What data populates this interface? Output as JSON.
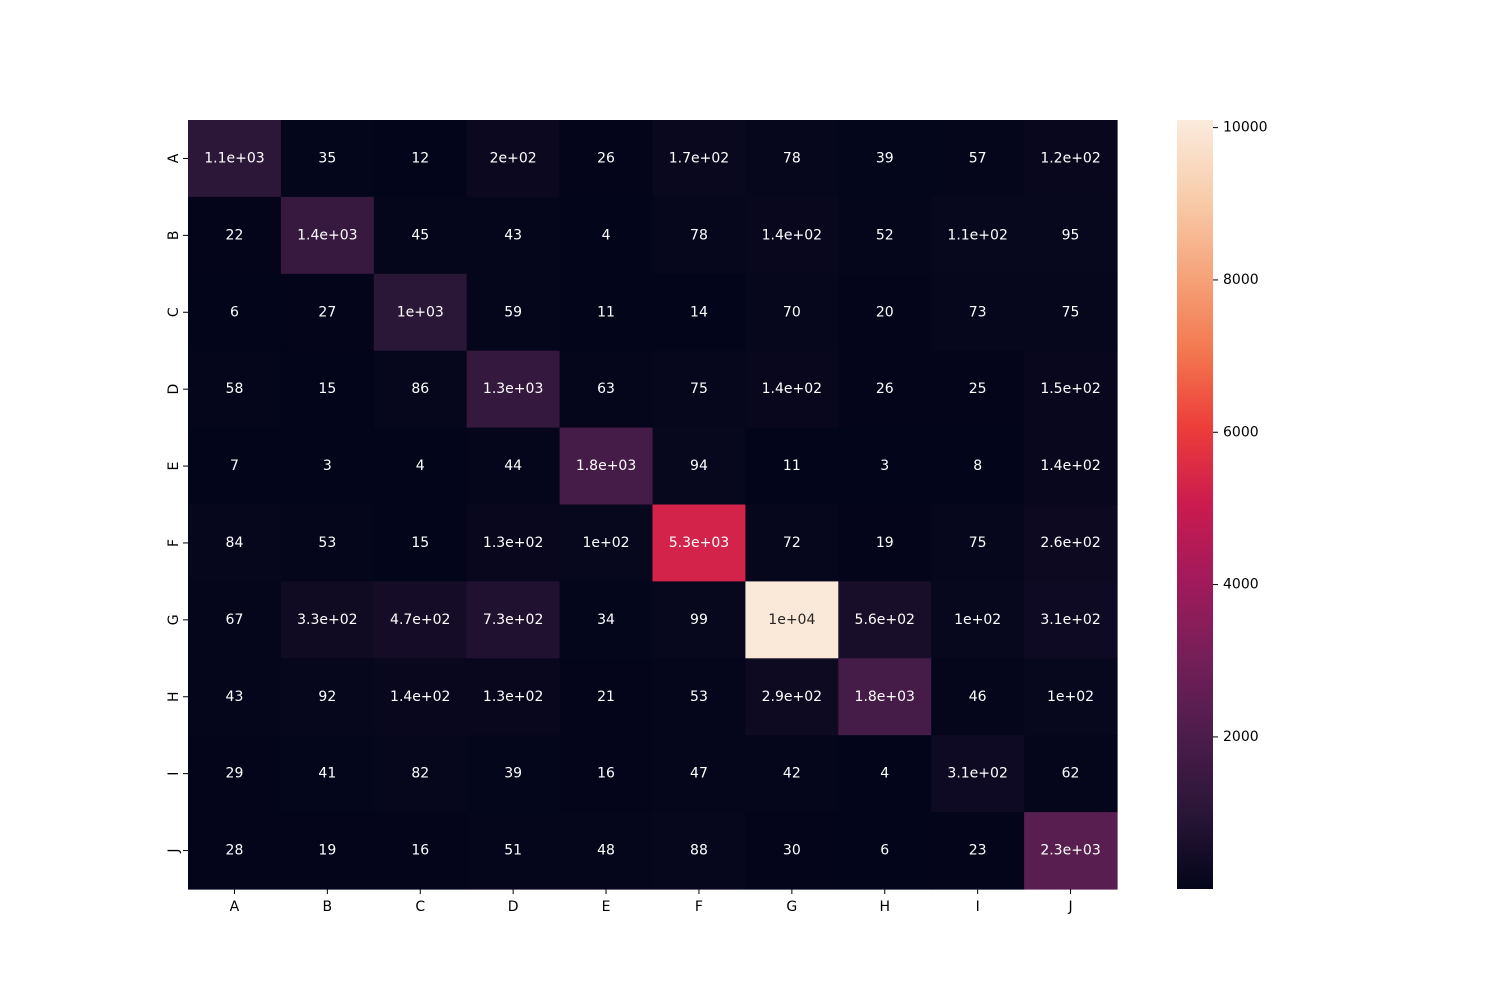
{
  "chart_data": {
    "type": "heatmap",
    "title": "",
    "xlabel": "",
    "ylabel": "",
    "x_categories": [
      "A",
      "B",
      "C",
      "D",
      "E",
      "F",
      "G",
      "H",
      "I",
      "J"
    ],
    "y_categories": [
      "A",
      "B",
      "C",
      "D",
      "E",
      "F",
      "G",
      "H",
      "I",
      "J"
    ],
    "values": [
      [
        1100,
        35,
        12,
        200,
        26,
        170,
        78,
        39,
        57,
        120
      ],
      [
        22,
        1400,
        45,
        43,
        4,
        78,
        140,
        52,
        110,
        95
      ],
      [
        6,
        27,
        1000,
        59,
        11,
        14,
        70,
        20,
        73,
        75
      ],
      [
        58,
        15,
        86,
        1300,
        63,
        75,
        140,
        26,
        25,
        150
      ],
      [
        7,
        3,
        4,
        44,
        1800,
        94,
        11,
        3,
        8,
        140
      ],
      [
        84,
        53,
        15,
        130,
        100,
        5300,
        72,
        19,
        75,
        260
      ],
      [
        67,
        330,
        470,
        730,
        34,
        99,
        10000,
        560,
        100,
        310
      ],
      [
        43,
        92,
        140,
        130,
        21,
        53,
        290,
        1800,
        46,
        100
      ],
      [
        29,
        41,
        82,
        39,
        16,
        47,
        42,
        4,
        310,
        62
      ],
      [
        28,
        19,
        16,
        51,
        48,
        88,
        30,
        6,
        23,
        2300
      ]
    ],
    "annotations": [
      [
        "1.1e+03",
        "35",
        "12",
        "2e+02",
        "26",
        "1.7e+02",
        "78",
        "39",
        "57",
        "1.2e+02"
      ],
      [
        "22",
        "1.4e+03",
        "45",
        "43",
        "4",
        "78",
        "1.4e+02",
        "52",
        "1.1e+02",
        "95"
      ],
      [
        "6",
        "27",
        "1e+03",
        "59",
        "11",
        "14",
        "70",
        "20",
        "73",
        "75"
      ],
      [
        "58",
        "15",
        "86",
        "1.3e+03",
        "63",
        "75",
        "1.4e+02",
        "26",
        "25",
        "1.5e+02"
      ],
      [
        "7",
        "3",
        "4",
        "44",
        "1.8e+03",
        "94",
        "11",
        "3",
        "8",
        "1.4e+02"
      ],
      [
        "84",
        "53",
        "15",
        "1.3e+02",
        "1e+02",
        "5.3e+03",
        "72",
        "19",
        "75",
        "2.6e+02"
      ],
      [
        "67",
        "3.3e+02",
        "4.7e+02",
        "7.3e+02",
        "34",
        "99",
        "1e+04",
        "5.6e+02",
        "1e+02",
        "3.1e+02"
      ],
      [
        "43",
        "92",
        "1.4e+02",
        "1.3e+02",
        "21",
        "53",
        "2.9e+02",
        "1.8e+03",
        "46",
        "1e+02"
      ],
      [
        "29",
        "41",
        "82",
        "39",
        "16",
        "47",
        "42",
        "4",
        "3.1e+02",
        "62"
      ],
      [
        "28",
        "19",
        "16",
        "51",
        "48",
        "88",
        "30",
        "6",
        "23",
        "2.3e+03"
      ]
    ],
    "colorbar": {
      "min": 3,
      "max": 10100,
      "ticks": [
        2000,
        4000,
        6000,
        8000,
        10000
      ],
      "tick_labels": [
        "2000",
        "4000",
        "6000",
        "8000",
        "10000"
      ]
    },
    "colormap": "rocket",
    "colormap_stops": [
      "#03051a",
      "#2a1637",
      "#4c1d4b",
      "#751f58",
      "#a11a5b",
      "#cb1b4f",
      "#ed3d3a",
      "#f3784f",
      "#f6a47b",
      "#f8cdab",
      "#faebdd"
    ],
    "grid": false
  }
}
